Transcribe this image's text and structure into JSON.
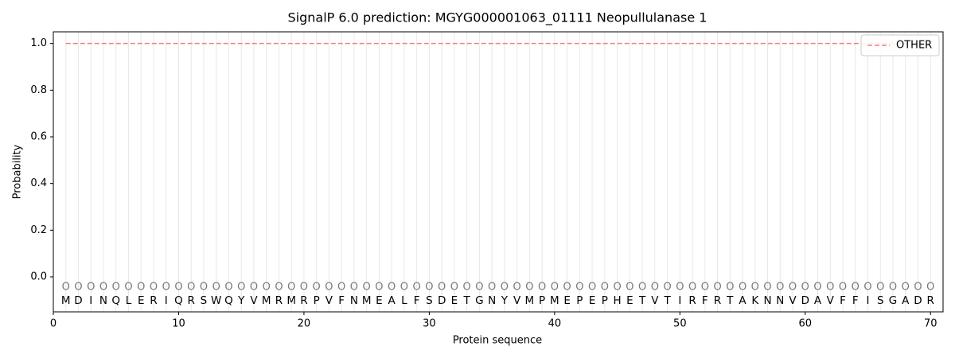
{
  "chart_data": {
    "type": "line",
    "title": "SignalP 6.0 prediction: MGYG000001063_01111 Neopullulanase 1",
    "x_label": "Protein sequence",
    "y_label": "Probability",
    "x": [
      1,
      2,
      3,
      4,
      5,
      6,
      7,
      8,
      9,
      10,
      11,
      12,
      13,
      14,
      15,
      16,
      17,
      18,
      19,
      20,
      21,
      22,
      23,
      24,
      25,
      26,
      27,
      28,
      29,
      30,
      31,
      32,
      33,
      34,
      35,
      36,
      37,
      38,
      39,
      40,
      41,
      42,
      43,
      44,
      45,
      46,
      47,
      48,
      49,
      50,
      51,
      52,
      53,
      54,
      55,
      56,
      57,
      58,
      59,
      60,
      61,
      62,
      63,
      64,
      65,
      66,
      67,
      68,
      69,
      70
    ],
    "series": [
      {
        "name": "OTHER",
        "color": "#f08080",
        "dashed": true,
        "values": [
          1,
          1,
          1,
          1,
          1,
          1,
          1,
          1,
          1,
          1,
          1,
          1,
          1,
          1,
          1,
          1,
          1,
          1,
          1,
          1,
          1,
          1,
          1,
          1,
          1,
          1,
          1,
          1,
          1,
          1,
          1,
          1,
          1,
          1,
          1,
          1,
          1,
          1,
          1,
          1,
          1,
          1,
          1,
          1,
          1,
          1,
          1,
          1,
          1,
          1,
          1,
          1,
          1,
          1,
          1,
          1,
          1,
          1,
          1,
          1,
          1,
          1,
          1,
          1,
          1,
          1,
          1,
          1,
          1,
          1
        ]
      }
    ],
    "sequence": [
      "M",
      "D",
      "I",
      "N",
      "Q",
      "L",
      "E",
      "R",
      "I",
      "Q",
      "R",
      "S",
      "W",
      "Q",
      "Y",
      "V",
      "M",
      "R",
      "M",
      "R",
      "P",
      "V",
      "F",
      "N",
      "M",
      "E",
      "A",
      "L",
      "F",
      "S",
      "D",
      "E",
      "T",
      "G",
      "N",
      "Y",
      "V",
      "M",
      "P",
      "M",
      "E",
      "P",
      "E",
      "P",
      "H",
      "E",
      "T",
      "V",
      "T",
      "I",
      "R",
      "F",
      "R",
      "T",
      "A",
      "K",
      "N",
      "N",
      "V",
      "D",
      "A",
      "V",
      "F",
      "F",
      "I",
      "S",
      "G",
      "A",
      "D",
      "R"
    ],
    "region_labels": [
      "O",
      "O",
      "O",
      "O",
      "O",
      "O",
      "O",
      "O",
      "O",
      "O",
      "O",
      "O",
      "O",
      "O",
      "O",
      "O",
      "O",
      "O",
      "O",
      "O",
      "O",
      "O",
      "O",
      "O",
      "O",
      "O",
      "O",
      "O",
      "O",
      "O",
      "O",
      "O",
      "O",
      "O",
      "O",
      "O",
      "O",
      "O",
      "O",
      "O",
      "O",
      "O",
      "O",
      "O",
      "O",
      "O",
      "O",
      "O",
      "O",
      "O",
      "O",
      "O",
      "O",
      "O",
      "O",
      "O",
      "O",
      "O",
      "O",
      "O",
      "O",
      "O",
      "O",
      "O",
      "O",
      "O",
      "O",
      "O",
      "O",
      "O"
    ],
    "xlim": [
      0,
      71
    ],
    "ylim": [
      -0.15,
      1.05
    ],
    "xticks": [
      0,
      10,
      20,
      30,
      40,
      50,
      60,
      70
    ],
    "yticks": [
      {
        "value": 0,
        "label": "0.0"
      },
      {
        "value": 0.2,
        "label": "0.2"
      },
      {
        "value": 0.4,
        "label": "0.4"
      },
      {
        "value": 0.6,
        "label": "0.6"
      },
      {
        "value": 0.8,
        "label": "0.8"
      },
      {
        "value": 1,
        "label": "1.0"
      }
    ],
    "legend": "upper right"
  }
}
